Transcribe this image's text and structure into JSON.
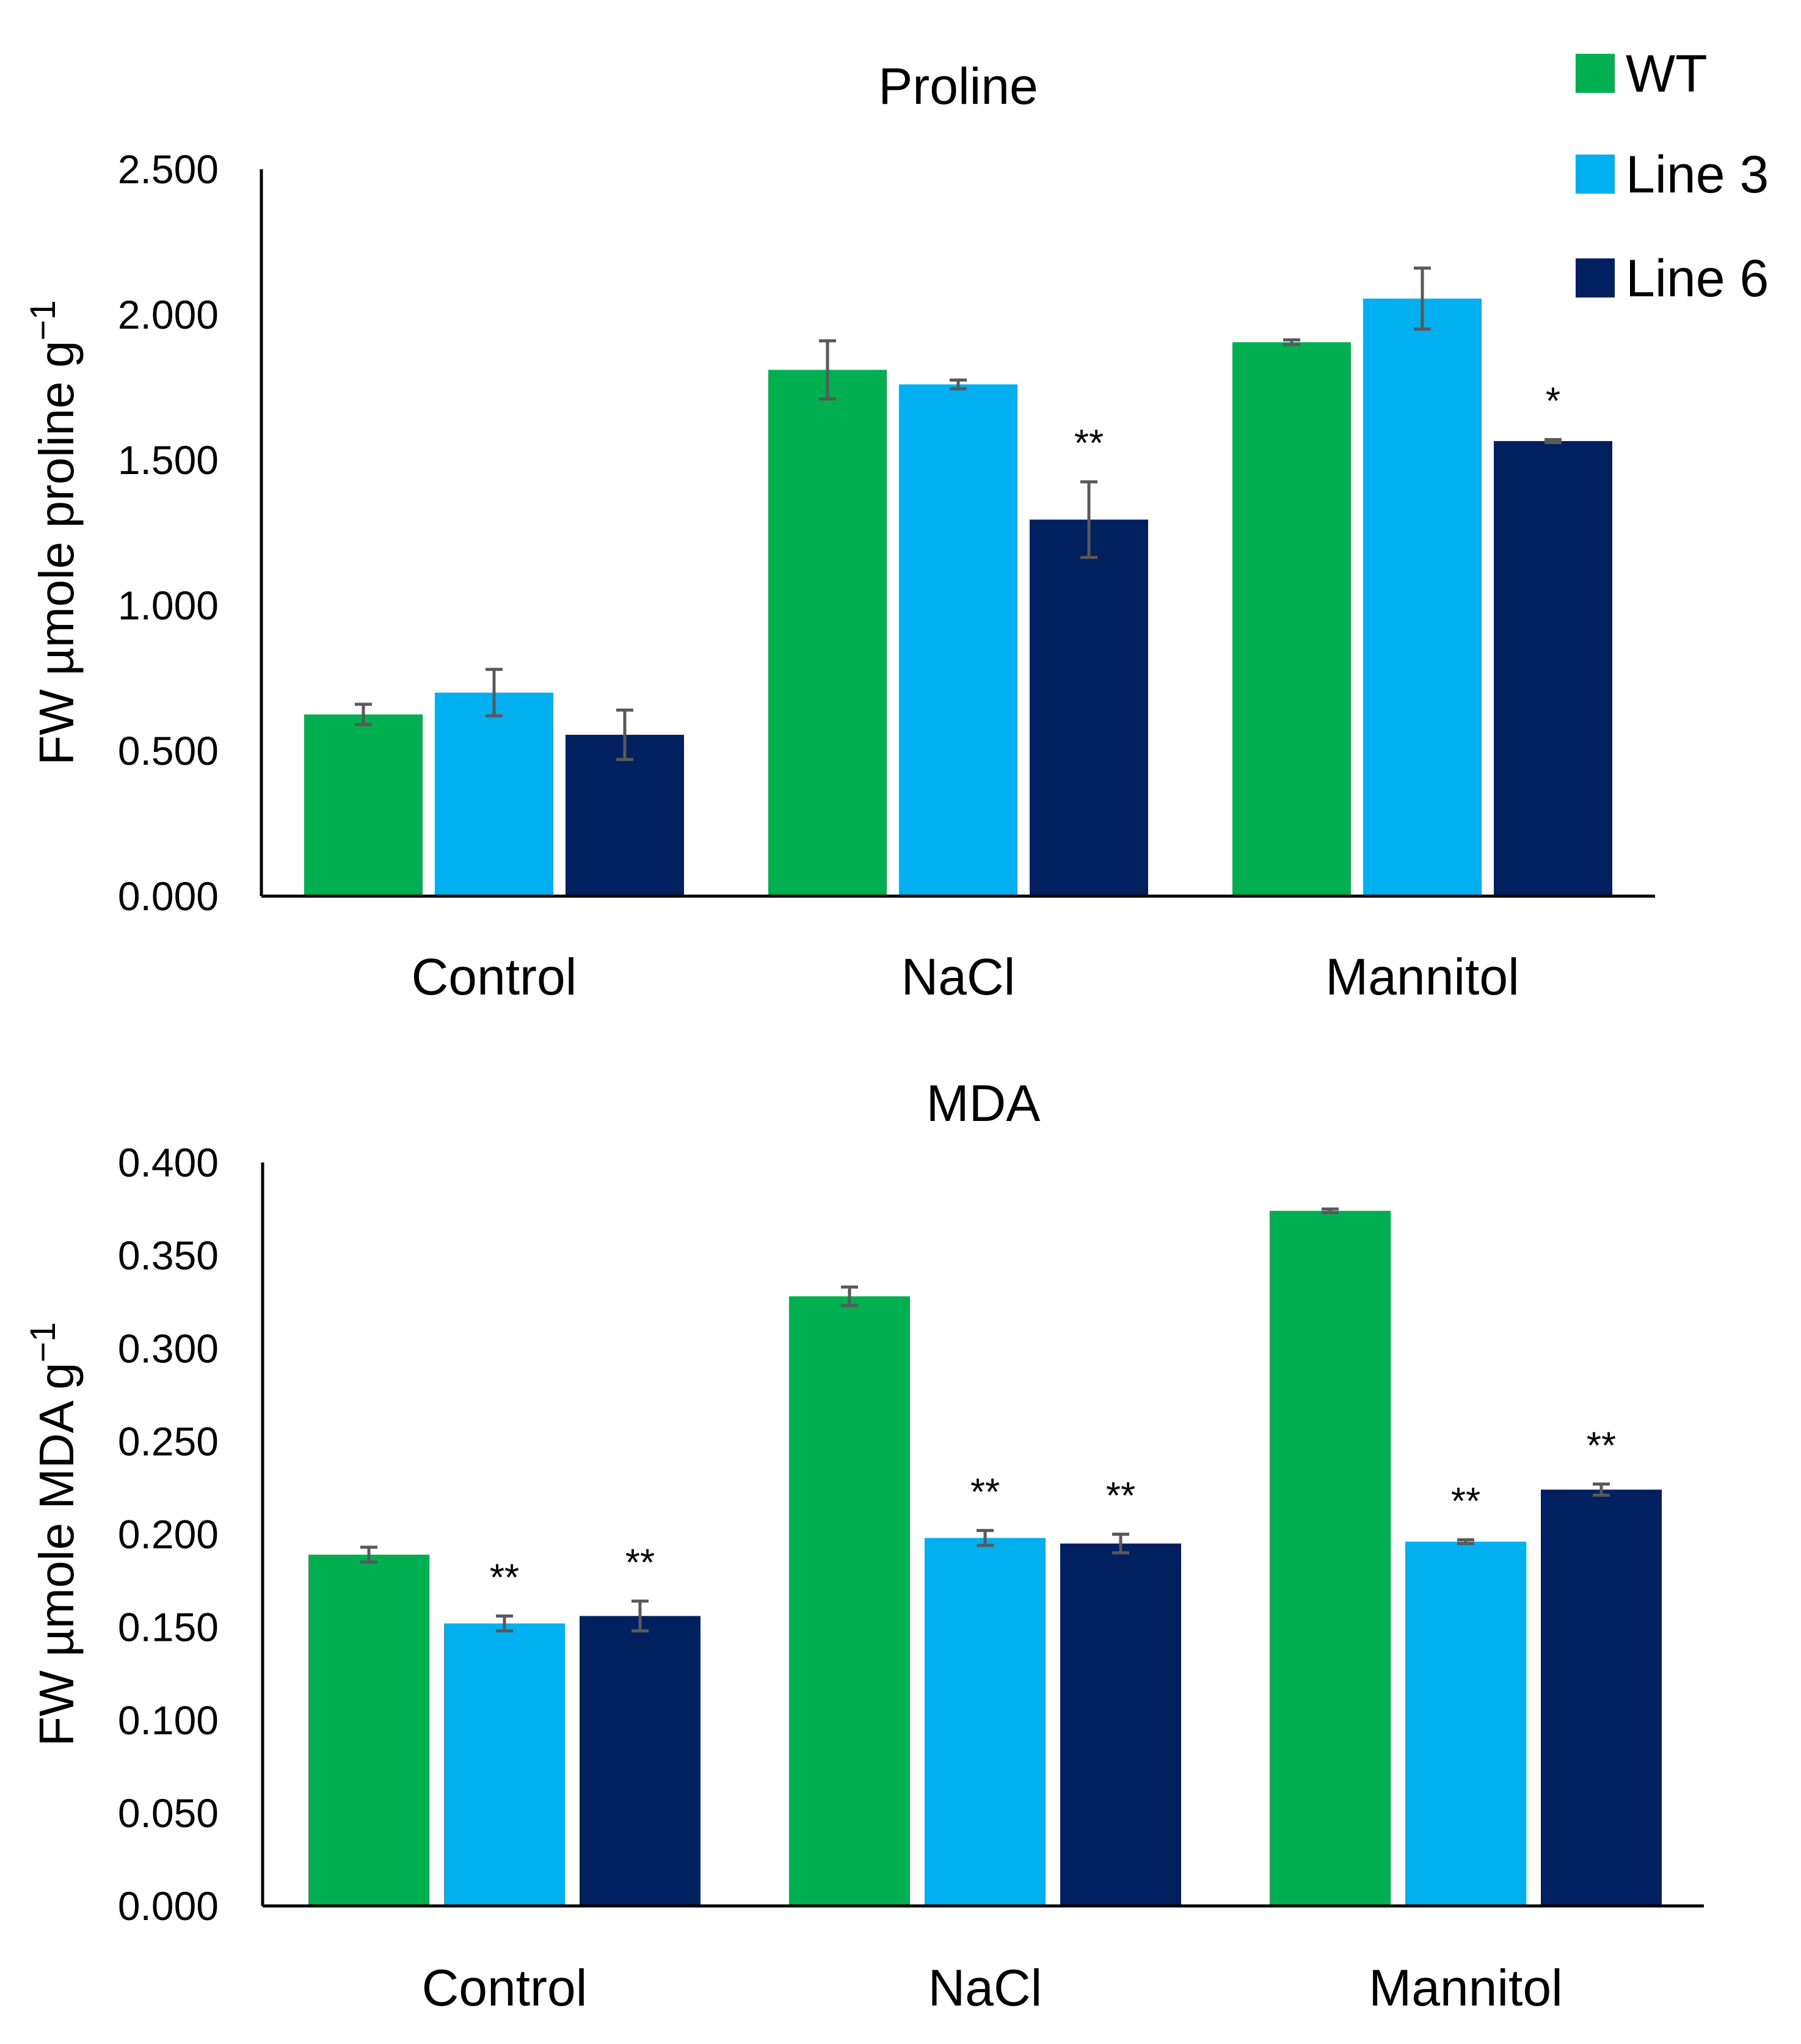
{
  "legend": [
    {
      "name": "WT",
      "color": "#00b050"
    },
    {
      "name": "Line 3",
      "color": "#00b0f0"
    },
    {
      "name": "Line 6",
      "color": "#002060"
    }
  ],
  "chart_data": [
    {
      "type": "bar",
      "title": "Proline",
      "ylabel": "FW µmole proline g",
      "ylabel_sup": "−1",
      "categories": [
        "Control",
        "NaCl",
        "Mannitol"
      ],
      "ylim": [
        0,
        2.5
      ],
      "yticks": [
        "0.000",
        "0.500",
        "1.000",
        "1.500",
        "2.000",
        "2.500"
      ],
      "series": [
        {
          "name": "WT",
          "values": [
            0.625,
            1.81,
            1.905
          ],
          "errors": [
            0.035,
            0.1,
            0.008
          ],
          "sig": [
            "",
            "",
            ""
          ]
        },
        {
          "name": "Line 3",
          "values": [
            0.7,
            1.76,
            2.055
          ],
          "errors": [
            0.08,
            0.015,
            0.105
          ],
          "sig": [
            "",
            "",
            ""
          ]
        },
        {
          "name": "Line 6",
          "values": [
            0.555,
            1.295,
            1.565
          ],
          "errors": [
            0.085,
            0.13,
            0.005
          ],
          "sig": [
            "",
            "**",
            "*"
          ]
        }
      ]
    },
    {
      "type": "bar",
      "title": "MDA",
      "ylabel": "FW µmole MDA g",
      "ylabel_sup": "−1",
      "categories": [
        "Control",
        "NaCl",
        "Mannitol"
      ],
      "ylim": [
        0,
        0.4
      ],
      "yticks": [
        "0.000",
        "0.050",
        "0.100",
        "0.150",
        "0.200",
        "0.250",
        "0.300",
        "0.350",
        "0.400"
      ],
      "series": [
        {
          "name": "WT",
          "values": [
            0.189,
            0.328,
            0.374
          ],
          "errors": [
            0.004,
            0.005,
            0.001
          ],
          "sig": [
            "",
            "",
            ""
          ]
        },
        {
          "name": "Line 3",
          "values": [
            0.152,
            0.198,
            0.196
          ],
          "errors": [
            0.004,
            0.004,
            0.001
          ],
          "sig": [
            "**",
            "**",
            "**"
          ]
        },
        {
          "name": "Line 6",
          "values": [
            0.156,
            0.195,
            0.224
          ],
          "errors": [
            0.008,
            0.005,
            0.003
          ],
          "sig": [
            "**",
            "**",
            "**"
          ]
        }
      ]
    }
  ]
}
